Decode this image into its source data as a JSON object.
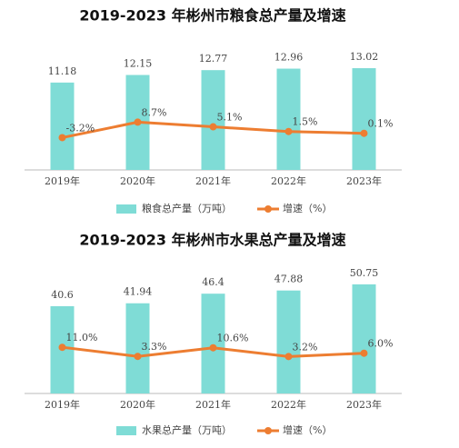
{
  "chart_data": [
    {
      "type": "bar",
      "title": "2019-2023 年彬州市粮食总产量及增速",
      "categories": [
        "2019年",
        "2020年",
        "2021年",
        "2022年",
        "2023年"
      ],
      "ylim": [
        0,
        15
      ],
      "y2lim": [
        -28,
        62
      ],
      "series": [
        {
          "name": "粮食总产量（万吨）",
          "type": "bar",
          "color": "#7fdcd6",
          "values": [
            11.18,
            12.15,
            12.77,
            12.96,
            13.02
          ]
        },
        {
          "name": "增速（%）",
          "type": "line",
          "axis": "y2",
          "color": "#ed7d31",
          "values": [
            -3.2,
            8.7,
            5.1,
            1.5,
            0.1
          ],
          "value_labels": [
            "-3.2%",
            "8.7%",
            "5.1%",
            "1.5%",
            "0.1%"
          ]
        }
      ]
    },
    {
      "type": "bar",
      "title": "2019-2023 年彬州市水果总产量及增速",
      "categories": [
        "2019年",
        "2020年",
        "2021年",
        "2022年",
        "2023年"
      ],
      "ylim": [
        0,
        60
      ],
      "y2lim": [
        -28,
        81
      ],
      "series": [
        {
          "name": "水果总产量（万吨）",
          "type": "bar",
          "color": "#7fdcd6",
          "values": [
            40.6,
            41.94,
            46.4,
            47.88,
            50.75
          ]
        },
        {
          "name": "增速（%）",
          "type": "line",
          "axis": "y2",
          "color": "#ed7d31",
          "values": [
            11.0,
            3.3,
            10.6,
            3.2,
            6.0
          ],
          "value_labels": [
            "11.0%",
            "3.3%",
            "10.6%",
            "3.2%",
            "6.0%"
          ]
        }
      ]
    }
  ]
}
